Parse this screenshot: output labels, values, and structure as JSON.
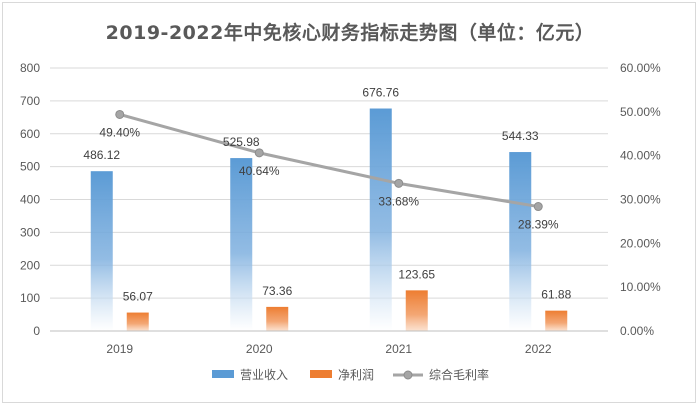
{
  "chart_data": {
    "type": "bar",
    "title": "2019-2022年中免核心财务指标走势图（单位：亿元）",
    "categories": [
      "2019",
      "2020",
      "2021",
      "2022"
    ],
    "series": [
      {
        "name": "营业收入",
        "type": "bar",
        "axis": "left",
        "values": [
          486.12,
          525.98,
          676.76,
          544.33
        ],
        "color": "#5b9bd5"
      },
      {
        "name": "净利润",
        "type": "bar",
        "axis": "left",
        "values": [
          56.07,
          73.36,
          123.65,
          61.88
        ],
        "color": "#ed7d31"
      },
      {
        "name": "综合毛利率",
        "type": "line",
        "axis": "right",
        "values": [
          49.4,
          40.64,
          33.68,
          28.39
        ],
        "color": "#a5a5a5"
      }
    ],
    "value_labels": {
      "营业收入": [
        "486.12",
        "525.98",
        "676.76",
        "544.33"
      ],
      "净利润": [
        "56.07",
        "73.36",
        "123.65",
        "61.88"
      ],
      "综合毛利率": [
        "49.40%",
        "40.64%",
        "33.68%",
        "28.39%"
      ]
    },
    "ylim": [
      0,
      800
    ],
    "y_ticks": [
      "0",
      "100",
      "200",
      "300",
      "400",
      "500",
      "600",
      "700",
      "800"
    ],
    "y2lim": [
      0,
      60
    ],
    "y2_ticks": [
      "0.00%",
      "10.00%",
      "20.00%",
      "30.00%",
      "40.00%",
      "50.00%",
      "60.00%"
    ],
    "grid": true,
    "legend": "bottom-center"
  }
}
